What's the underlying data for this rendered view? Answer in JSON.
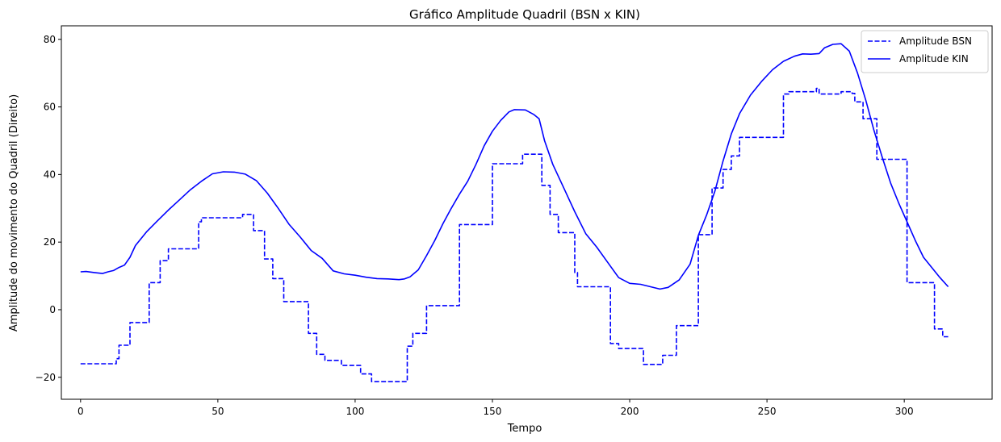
{
  "chart_data": {
    "type": "line",
    "title": "Gráfico Amplitude Quadril (BSN x KIN)",
    "xlabel": "Tempo",
    "ylabel": "Amplitude do movimento do Quadril (Direito)",
    "xlim": [
      -7,
      332
    ],
    "ylim": [
      -26.5,
      84
    ],
    "xticks": [
      0,
      50,
      100,
      150,
      200,
      250,
      300
    ],
    "yticks": [
      -20,
      0,
      20,
      40,
      60,
      80
    ],
    "xtick_labels": [
      "0",
      "50",
      "100",
      "150",
      "200",
      "250",
      "300"
    ],
    "ytick_labels": [
      "−20",
      "0",
      "20",
      "40",
      "60",
      "80"
    ],
    "grid": false,
    "legend_position": "top-right",
    "series": [
      {
        "name": "Amplitude BSN",
        "color": "#0000ff",
        "linestyle": "dashed",
        "drawstyle": "steps",
        "points": [
          [
            0,
            -16
          ],
          [
            12,
            -16
          ],
          [
            13,
            -14.5
          ],
          [
            14,
            -10.5
          ],
          [
            17,
            -10.5
          ],
          [
            18,
            -3.8
          ],
          [
            24,
            -3.8
          ],
          [
            25,
            8
          ],
          [
            28,
            8
          ],
          [
            29,
            14.5
          ],
          [
            31,
            14.5
          ],
          [
            32,
            18
          ],
          [
            42,
            18
          ],
          [
            43,
            26
          ],
          [
            44,
            27.2
          ],
          [
            58,
            27.2
          ],
          [
            59,
            28.2
          ],
          [
            62,
            28.2
          ],
          [
            63,
            23.4
          ],
          [
            66,
            23.4
          ],
          [
            67,
            15
          ],
          [
            69,
            15
          ],
          [
            70,
            9.2
          ],
          [
            73,
            9.2
          ],
          [
            74,
            2.4
          ],
          [
            82,
            2.4
          ],
          [
            83,
            -7
          ],
          [
            85,
            -7
          ],
          [
            86,
            -13.2
          ],
          [
            88,
            -13.2
          ],
          [
            89,
            -15
          ],
          [
            94,
            -15
          ],
          [
            95,
            -16.5
          ],
          [
            101,
            -16.5
          ],
          [
            102,
            -19
          ],
          [
            105,
            -19
          ],
          [
            106,
            -21.3
          ],
          [
            118,
            -21.3
          ],
          [
            119,
            -10.8
          ],
          [
            120,
            -10.8
          ],
          [
            121,
            -7
          ],
          [
            125,
            -7
          ],
          [
            126,
            1.2
          ],
          [
            137,
            1.2
          ],
          [
            138,
            25.2
          ],
          [
            149,
            25.2
          ],
          [
            150,
            43.2
          ],
          [
            160,
            43.2
          ],
          [
            161,
            46
          ],
          [
            167,
            46
          ],
          [
            168,
            36.8
          ],
          [
            170,
            36.8
          ],
          [
            171,
            28.2
          ],
          [
            173,
            28.2
          ],
          [
            174,
            22.8
          ],
          [
            179,
            22.8
          ],
          [
            180,
            11
          ],
          [
            181,
            6.8
          ],
          [
            192,
            6.8
          ],
          [
            193,
            -10
          ],
          [
            195,
            -10
          ],
          [
            196,
            -11.5
          ],
          [
            204,
            -11.5
          ],
          [
            205,
            -16.2
          ],
          [
            211,
            -16.2
          ],
          [
            212,
            -13.5
          ],
          [
            216,
            -13.5
          ],
          [
            217,
            -4.7
          ],
          [
            224,
            -4.7
          ],
          [
            225,
            22.2
          ],
          [
            229,
            22.2
          ],
          [
            230,
            36
          ],
          [
            233,
            36
          ],
          [
            234,
            41.5
          ],
          [
            236,
            41.5
          ],
          [
            237,
            45.5
          ],
          [
            239,
            45.5
          ],
          [
            240,
            51
          ],
          [
            255,
            51
          ],
          [
            256,
            63.8
          ],
          [
            258,
            64.5
          ],
          [
            267,
            64.5
          ],
          [
            268,
            65.5
          ],
          [
            269,
            63.8
          ],
          [
            276,
            63.8
          ],
          [
            277,
            64.5
          ],
          [
            281,
            64
          ],
          [
            282,
            61.5
          ],
          [
            284,
            61.5
          ],
          [
            285,
            56.5
          ],
          [
            289,
            56.5
          ],
          [
            290,
            44.5
          ],
          [
            300,
            44.5
          ],
          [
            301,
            8
          ],
          [
            310,
            8
          ],
          [
            311,
            -5.7
          ],
          [
            313,
            -5.7
          ],
          [
            314,
            -8
          ],
          [
            316,
            -8
          ]
        ]
      },
      {
        "name": "Amplitude KIN",
        "color": "#0000ff",
        "linestyle": "solid",
        "drawstyle": "default",
        "points": [
          [
            0,
            11.2
          ],
          [
            2,
            11.3
          ],
          [
            5,
            11
          ],
          [
            8,
            10.7
          ],
          [
            10,
            11.2
          ],
          [
            12,
            11.6
          ],
          [
            14,
            12.5
          ],
          [
            16,
            13.2
          ],
          [
            18,
            15.5
          ],
          [
            20,
            19
          ],
          [
            24,
            23
          ],
          [
            28,
            26.3
          ],
          [
            32,
            29.5
          ],
          [
            36,
            32.5
          ],
          [
            40,
            35.5
          ],
          [
            44,
            38
          ],
          [
            48,
            40.2
          ],
          [
            52,
            40.8
          ],
          [
            56,
            40.7
          ],
          [
            60,
            40.1
          ],
          [
            64,
            38.2
          ],
          [
            68,
            34.5
          ],
          [
            72,
            30
          ],
          [
            76,
            25.2
          ],
          [
            80,
            21.5
          ],
          [
            84,
            17.5
          ],
          [
            88,
            15.2
          ],
          [
            92,
            11.5
          ],
          [
            96,
            10.6
          ],
          [
            100,
            10.2
          ],
          [
            104,
            9.6
          ],
          [
            108,
            9.2
          ],
          [
            112,
            9.1
          ],
          [
            116,
            8.9
          ],
          [
            118,
            9.1
          ],
          [
            120,
            9.7
          ],
          [
            123,
            11.8
          ],
          [
            126,
            16
          ],
          [
            129,
            20.5
          ],
          [
            132,
            25.5
          ],
          [
            135,
            30
          ],
          [
            138,
            34.2
          ],
          [
            141,
            38
          ],
          [
            144,
            43
          ],
          [
            147,
            48.5
          ],
          [
            150,
            52.8
          ],
          [
            153,
            56
          ],
          [
            156,
            58.5
          ],
          [
            158,
            59.2
          ],
          [
            162,
            59.1
          ],
          [
            165,
            57.8
          ],
          [
            167,
            56.5
          ],
          [
            169,
            50
          ],
          [
            172,
            43
          ],
          [
            176,
            36
          ],
          [
            180,
            29
          ],
          [
            184,
            22.5
          ],
          [
            188,
            18.5
          ],
          [
            192,
            14
          ],
          [
            196,
            9.5
          ],
          [
            200,
            7.8
          ],
          [
            204,
            7.5
          ],
          [
            208,
            6.7
          ],
          [
            211,
            6.1
          ],
          [
            214,
            6.6
          ],
          [
            218,
            8.8
          ],
          [
            222,
            13.5
          ],
          [
            225,
            22
          ],
          [
            228,
            28
          ],
          [
            231,
            35
          ],
          [
            234,
            44
          ],
          [
            237,
            52
          ],
          [
            240,
            58
          ],
          [
            244,
            63.5
          ],
          [
            248,
            67.5
          ],
          [
            252,
            71
          ],
          [
            256,
            73.5
          ],
          [
            260,
            75
          ],
          [
            263,
            75.7
          ],
          [
            266,
            75.6
          ],
          [
            269,
            75.8
          ],
          [
            271,
            77.5
          ],
          [
            274,
            78.5
          ],
          [
            277,
            78.7
          ],
          [
            280,
            76.5
          ],
          [
            283,
            70
          ],
          [
            286,
            62
          ],
          [
            289,
            53
          ],
          [
            292,
            45
          ],
          [
            295,
            37.5
          ],
          [
            298,
            31.5
          ],
          [
            301,
            26
          ],
          [
            304,
            20.5
          ],
          [
            307,
            15.5
          ],
          [
            310,
            12.5
          ],
          [
            313,
            9.5
          ],
          [
            316,
            6.8
          ]
        ]
      }
    ]
  }
}
